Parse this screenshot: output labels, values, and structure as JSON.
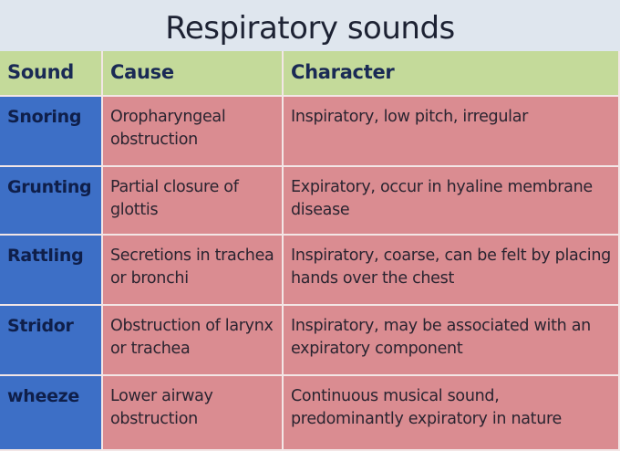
{
  "title": "Respiratory sounds",
  "table": {
    "header": [
      "Sound",
      "Cause",
      "Character"
    ],
    "rows": [
      [
        "Snoring",
        "Oropharyngeal obstruction",
        "Inspiratory, low pitch, irregular"
      ],
      [
        "Grunting",
        "Partial closure of glottis",
        "Expiratory, occur in hyaline membrane disease"
      ],
      [
        "Rattling",
        "Secretions in trachea or bronchi",
        "Inspiratory, coarse, can be felt by placing hands over the chest"
      ],
      [
        "Stridor",
        "Obstruction of larynx or trachea",
        "Inspiratory, may be associated with an expiratory component"
      ],
      [
        "wheeze",
        "Lower airway obstruction",
        "Continuous musical sound, predominantly expiratory in nature"
      ]
    ]
  }
}
